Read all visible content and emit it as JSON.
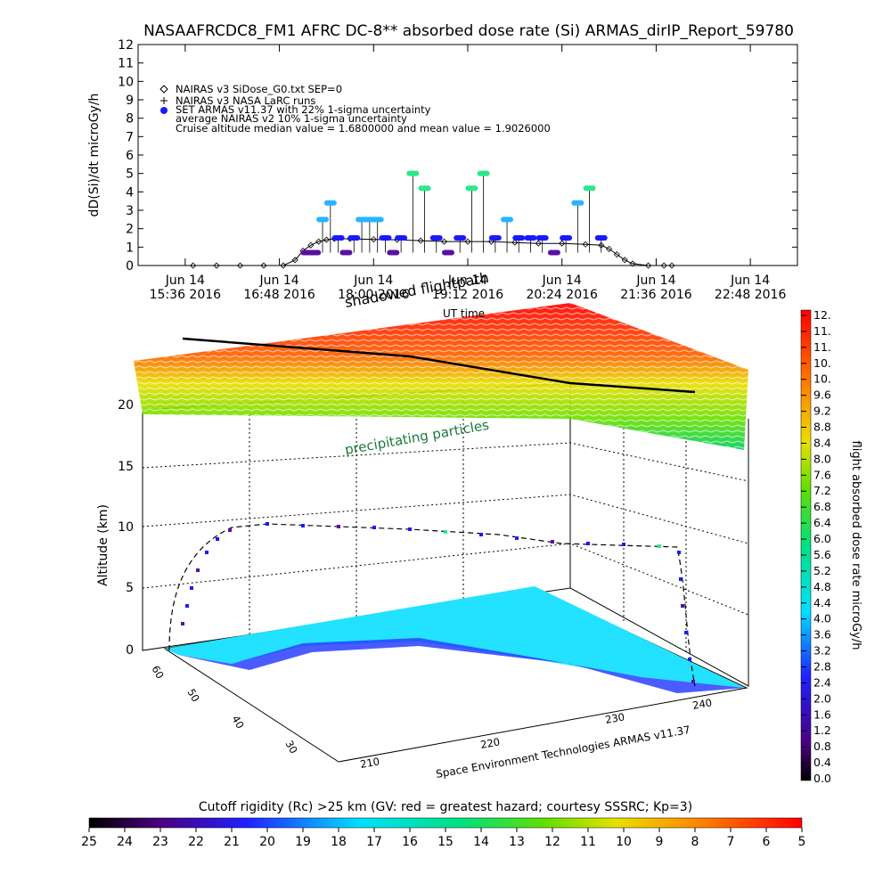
{
  "title": "NASAAFRCDC8_FM1 AFRC DC-8** absorbed dose rate (Si) ARMAS_dirIP_Report_59780",
  "colors": {
    "nairas_v3": "#000000",
    "armas": "#1a1aff",
    "armas_high": "#2ce88a",
    "armas_mid": "#28b4ff",
    "armas_low": "#5a10a0"
  },
  "legend": [
    "NAIRAS v3 SiDose_G0.txt SEP=0",
    "NAIRAS v3 NASA LaRC runs",
    "SET ARMAS v11.37 with 22% 1-sigma uncertainty",
    "average NAIRAS v2 10% 1-sigma uncertainty",
    "Cruise altitude median value = 1.6800000 and mean value = 1.9026000"
  ],
  "chart_data": [
    {
      "type": "scatter",
      "title": "NASAAFRCDC8_FM1 AFRC DC-8** absorbed dose rate (Si) ARMAS_dirIP_Report_59780",
      "xlabel": "UT time",
      "ylabel": "dD(Si)/dt microGy/h",
      "ylim": [
        0,
        12
      ],
      "yticks": [
        "0",
        "1",
        "2",
        "3",
        "4",
        "5",
        "6",
        "7",
        "8",
        "9",
        "10",
        "11",
        "12"
      ],
      "xticks_top": [
        "Jun 14",
        "Jun 14",
        "Jun 14",
        "Jun 14",
        "Jun 14",
        "Jun 14",
        "Jun 14"
      ],
      "xticks_bottom": [
        "15:36 2016",
        "16:48 2016",
        "18:00 2016",
        "19:12 2016",
        "20:24 2016",
        "21:36 2016",
        "22:48 2016"
      ],
      "x_hours": [
        15.6,
        16.8,
        18.0,
        19.2,
        20.4,
        21.6,
        22.8
      ],
      "series": [
        {
          "name": "NAIRAS v3 SiDose_G0.txt SEP=0",
          "x": [
            15.7,
            16.0,
            16.3,
            16.6,
            16.85,
            17.0,
            17.1,
            17.2,
            17.3,
            17.4,
            17.5,
            17.7,
            18.0,
            18.3,
            18.6,
            18.9,
            19.2,
            19.5,
            19.8,
            20.1,
            20.4,
            20.7,
            20.9,
            21.0,
            21.1,
            21.2,
            21.3,
            21.5,
            21.7,
            21.8
          ],
          "y": [
            0,
            0,
            0,
            0,
            0,
            0.3,
            0.8,
            1.1,
            1.3,
            1.4,
            1.45,
            1.45,
            1.42,
            1.4,
            1.35,
            1.3,
            1.3,
            1.3,
            1.25,
            1.2,
            1.2,
            1.15,
            1.1,
            0.9,
            0.6,
            0.3,
            0.1,
            0,
            0,
            0
          ]
        },
        {
          "name": "SET ARMAS v11.37 with 22% 1-sigma uncertainty",
          "x": [
            17.15,
            17.25,
            17.35,
            17.45,
            17.55,
            17.65,
            17.75,
            17.85,
            17.95,
            18.05,
            18.15,
            18.25,
            18.35,
            18.5,
            18.65,
            18.8,
            18.95,
            19.1,
            19.25,
            19.4,
            19.55,
            19.7,
            19.85,
            20.0,
            20.15,
            20.3,
            20.45,
            20.6,
            20.75,
            20.9
          ],
          "y": [
            0.7,
            0.7,
            2.5,
            3.4,
            1.5,
            0.7,
            1.5,
            2.5,
            2.5,
            2.5,
            1.5,
            0.7,
            1.5,
            5.0,
            4.2,
            1.5,
            0.7,
            1.5,
            4.2,
            5.0,
            1.5,
            2.5,
            1.5,
            1.5,
            1.5,
            0.7,
            1.5,
            3.4,
            4.2,
            1.5
          ]
        }
      ]
    },
    {
      "type": "scatter",
      "title": "shadowed flightpath",
      "annotations": [
        "precipitating particles",
        "shadowed flightpath",
        "UT time",
        "Space Environment Technologies ARMAS v11.37"
      ],
      "zlabel": "Altitude (km)",
      "zticks": [
        "0",
        "5",
        "10",
        "15",
        "20"
      ],
      "lat_ticks": [
        "30",
        "40",
        "50",
        "60"
      ],
      "lon_ticks": [
        "210",
        "220",
        "230",
        "240"
      ],
      "colorbar_label": "flight absorbed dose rate microGy/h",
      "colorbar_ticks": [
        "12.",
        "11.",
        "11.",
        "10.",
        "10.",
        "9.6",
        "9.2",
        "8.8",
        "8.4",
        "8.0",
        "7.6",
        "7.2",
        "6.8",
        "6.4",
        "6.0",
        "5.6",
        "5.2",
        "4.8",
        "4.4",
        "4.0",
        "3.6",
        "3.2",
        "2.8",
        "2.4",
        "2.0",
        "1.6",
        "1.2",
        "0.8",
        "0.4",
        "0.0"
      ],
      "rigidity_label": "Cutoff rigidity (Rc) >25 km (GV: red = greatest hazard; courtesy SSSRC; Kp=3)",
      "rigidity_ticks": [
        "25",
        "24",
        "23",
        "22",
        "21",
        "20",
        "19",
        "18",
        "17",
        "16",
        "15",
        "14",
        "13",
        "12",
        "11",
        "10",
        "9",
        "8",
        "7",
        "6",
        "5"
      ]
    }
  ]
}
